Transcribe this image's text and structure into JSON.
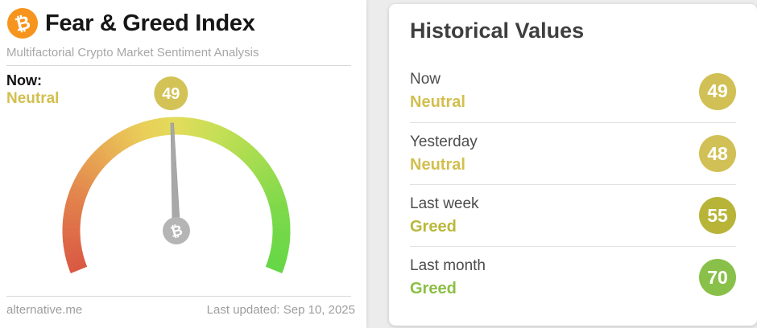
{
  "left_panel": {
    "title": "Fear & Greed Index",
    "subtitle": "Multifactorial Crypto Market Sentiment Analysis",
    "bitcoin_glyph": "₿",
    "now_label": "Now:",
    "now_status": "Neutral",
    "now_status_color": "#d2bf4e",
    "footer": {
      "site_link": "alternative.me",
      "last_updated": "Last updated: Sep 10, 2025"
    }
  },
  "historical_panel": {
    "title": "Historical Values",
    "rows": [
      {
        "label": "Now",
        "status": "Neutral",
        "value": 49,
        "status_color": "#d2bf4e",
        "badge_color": "#d1c055"
      },
      {
        "label": "Yesterday",
        "status": "Neutral",
        "value": 48,
        "status_color": "#d2bf4e",
        "badge_color": "#d1c055"
      },
      {
        "label": "Last week",
        "status": "Greed",
        "value": 55,
        "status_color": "#b9b83a",
        "badge_color": "#b7b438"
      },
      {
        "label": "Last month",
        "status": "Greed",
        "value": 70,
        "status_color": "#8abf42",
        "badge_color": "#89c04a"
      }
    ]
  },
  "chart_data": {
    "type": "gauge",
    "title": "Fear & Greed Index",
    "value": 49,
    "value_label": "Neutral",
    "min": 0,
    "max": 100,
    "start_angle_deg": -112,
    "end_angle_deg": 112,
    "badge_color": "#d3c255",
    "needle_color": "#a8a8a8",
    "pivot_color": "#b5b5b5",
    "color_stops": [
      [
        0.0,
        "#d95843"
      ],
      [
        0.07,
        "#dd6847"
      ],
      [
        0.18,
        "#e2834d"
      ],
      [
        0.3,
        "#e8a953"
      ],
      [
        0.42,
        "#e9cf59"
      ],
      [
        0.5,
        "#e2dc5b"
      ],
      [
        0.6,
        "#c6df55"
      ],
      [
        0.72,
        "#a3dc50"
      ],
      [
        0.85,
        "#7dd94a"
      ],
      [
        1.0,
        "#65d746"
      ]
    ],
    "historical": [
      {
        "label": "Now",
        "value": 49,
        "classification": "Neutral"
      },
      {
        "label": "Yesterday",
        "value": 48,
        "classification": "Neutral"
      },
      {
        "label": "Last week",
        "value": 55,
        "classification": "Greed"
      },
      {
        "label": "Last month",
        "value": 70,
        "classification": "Greed"
      }
    ]
  },
  "colors": {
    "bitcoin_orange": "#f7941d",
    "page_background": "#ececec",
    "card_background": "#ffffff"
  }
}
